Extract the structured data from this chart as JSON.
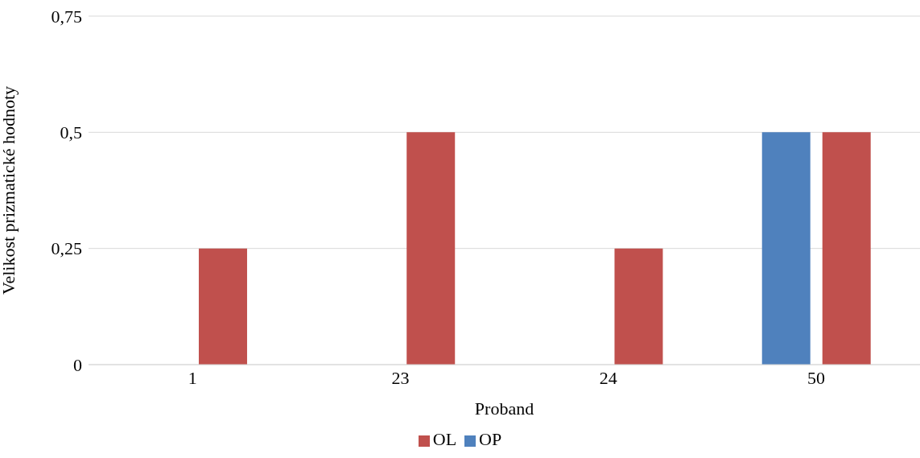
{
  "chart_data": {
    "type": "bar",
    "categories": [
      "1",
      "23",
      "24",
      "50"
    ],
    "series": [
      {
        "name": "OP",
        "color": "#4f81bd",
        "values": [
          0,
          0,
          0,
          0.5
        ]
      },
      {
        "name": "OL",
        "color": "#c0504d",
        "values": [
          0.25,
          0.5,
          0.25,
          0.5
        ]
      }
    ],
    "xlabel": "Proband",
    "ylabel": "Velikost prizmatické hodnoty",
    "ylim": [
      0,
      0.75
    ],
    "yticks": [
      0,
      {
        "value": 0.25,
        "label": "0,25"
      },
      {
        "value": 0.5,
        "label": "0,5"
      },
      {
        "value": 0.75,
        "label": "0,75"
      }
    ],
    "grid": "y",
    "legend": "bottom"
  }
}
